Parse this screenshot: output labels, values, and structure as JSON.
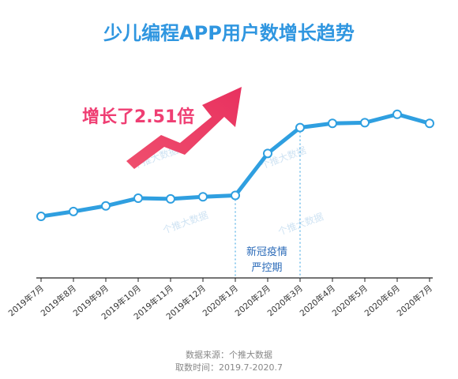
{
  "chart_data": {
    "type": "line",
    "title": "少儿编程APP用户数增长趋势",
    "categories": [
      "2019年7月",
      "2019年8月",
      "2019年9月",
      "2019年10月",
      "2019年11月",
      "2019年12月",
      "2020年1月",
      "2020年2月",
      "2020年3月",
      "2020年4月",
      "2020年5月",
      "2020年6月",
      "2020年7月"
    ],
    "values": [
      4.4,
      4.75,
      5.15,
      5.7,
      5.65,
      5.8,
      5.9,
      8.9,
      10.75,
      11.05,
      11.1,
      11.7,
      11.05
    ],
    "ylim": [
      0,
      14
    ],
    "xlabel": "",
    "ylabel": "",
    "grid": false,
    "line_color": "#2f9fe0",
    "marker_fill": "#ffffff",
    "markers": true,
    "callout": {
      "text": "增长了2.51倍",
      "color": "#ef3e73"
    },
    "highlight": {
      "from": "2020年1月",
      "to": "2020年3月",
      "label_lines": [
        "新冠疫情",
        "严控期"
      ],
      "label_color": "#2a6ab8"
    },
    "watermark": "个推大数据",
    "footer": {
      "source": "数据来源：个推大数据",
      "period": "取数时间：2019.7-2020.7"
    }
  },
  "colors": {
    "title": "#2f96e0",
    "axis": "#222222",
    "tick_label": "#333333",
    "footer": "#888888",
    "watermark": "#cfe3f3"
  }
}
